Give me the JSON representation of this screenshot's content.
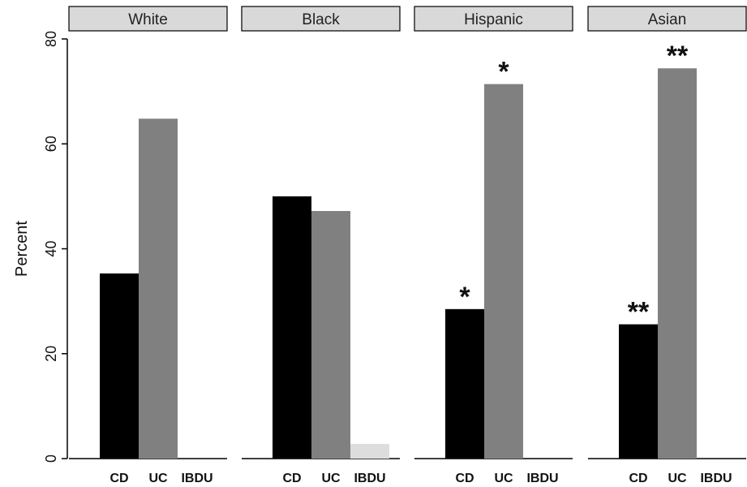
{
  "chart_data": {
    "type": "bar",
    "ylabel": "Percent",
    "ylim": [
      0,
      80
    ],
    "yticks": [
      0,
      20,
      40,
      60,
      80
    ],
    "categories": [
      "CD",
      "UC",
      "IBDU"
    ],
    "colors": {
      "CD": "#000000",
      "UC": "#808080",
      "IBDU": "#dddddd"
    },
    "panels": [
      {
        "label": "White",
        "values": [
          35.3,
          64.8,
          0
        ],
        "annotations": [
          "",
          "",
          ""
        ]
      },
      {
        "label": "Black",
        "values": [
          50.0,
          47.2,
          2.8
        ],
        "annotations": [
          "",
          "",
          ""
        ]
      },
      {
        "label": "Hispanic",
        "values": [
          28.5,
          71.4,
          0
        ],
        "annotations": [
          "*",
          "*",
          ""
        ]
      },
      {
        "label": "Asian",
        "values": [
          25.6,
          74.4,
          0
        ],
        "annotations": [
          "**",
          "**",
          ""
        ]
      }
    ]
  }
}
